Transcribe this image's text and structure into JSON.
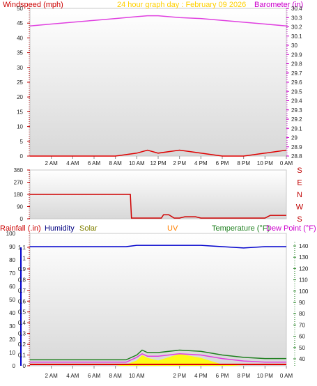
{
  "title": "24 hour graph day : February 09 2026",
  "top_panel": {
    "left_label": "Windspeed (mph)",
    "right_label": "Barometer (in)",
    "left_ticks": [
      "0",
      "5",
      "10",
      "15",
      "20",
      "25",
      "30",
      "35",
      "40",
      "45",
      "50"
    ],
    "right_ticks": [
      "28.8",
      "28.9",
      "29",
      "29.1",
      "29.2",
      "29.3",
      "29.4",
      "29.5",
      "29.6",
      "29.7",
      "29.8",
      "29.9",
      "30",
      "30.1",
      "30.2",
      "30.3",
      "30.4"
    ],
    "x_ticks": [
      "2 AM",
      "4 AM",
      "6 AM",
      "8 AM",
      "10 AM",
      "12 PM",
      "2 PM",
      "4 PM",
      "6 PM",
      "8 PM",
      "10 PM",
      "0 AM"
    ]
  },
  "middle_panel": {
    "left_ticks": [
      "0",
      "90",
      "180",
      "270",
      "360"
    ],
    "right_labels": [
      "S",
      "E",
      "N",
      "W",
      "S"
    ]
  },
  "bottom_panel": {
    "labels": {
      "rainfall": "Rainfall (.in)",
      "humidity": "Humidity",
      "solar": "Solar",
      "uv": "UV",
      "temperature": "Temperature (°F)",
      "dewpoint": "Dew Point (°F)"
    },
    "left_ticks_pct": [
      "0",
      "10",
      "20",
      "30",
      "40",
      "50",
      "60",
      "70",
      "80",
      "90",
      "100"
    ],
    "left_ticks_rain": [
      "0",
      "0.1",
      "0.2",
      "0.3",
      "0.4",
      "0.5",
      "0.6",
      "0.7",
      "0.8",
      "0.9",
      "1",
      "1.1"
    ],
    "right_ticks": [
      "40",
      "50",
      "60",
      "70",
      "80",
      "90",
      "100",
      "110",
      "120",
      "130",
      "140"
    ],
    "x_ticks": [
      "2 AM",
      "4 AM",
      "6 AM",
      "8 AM",
      "10 AM",
      "2 PM",
      "4 PM",
      "6 PM",
      "8 PM",
      "10 PM",
      "0 AM"
    ]
  },
  "colors": {
    "wind": "#e00000",
    "gust": "#e00000",
    "barometer": "#e040e0",
    "direction": "#d00000",
    "humidity": "#0000cc",
    "temperature": "#208020",
    "dewpoint": "#e040e0",
    "solar": "#ffff00",
    "uv": "#ff8000",
    "rain": "#e00000",
    "title": "#ffd000",
    "solar_label": "#808000"
  },
  "chart_data": [
    {
      "type": "line",
      "title": "24 hour graph day : February 09 2026",
      "xlabel": "",
      "x_hours": [
        0,
        2,
        4,
        6,
        8,
        10,
        11,
        12,
        14,
        16,
        18,
        20,
        22,
        24
      ],
      "series": [
        {
          "name": "Barometer (in)",
          "axis": "right",
          "values": [
            30.21,
            30.23,
            30.25,
            30.27,
            30.29,
            30.31,
            30.32,
            30.32,
            30.3,
            30.29,
            30.27,
            30.25,
            30.23,
            30.21
          ]
        },
        {
          "name": "Windspeed (mph)",
          "axis": "left",
          "values": [
            0,
            0,
            0,
            0,
            0,
            1,
            2,
            1,
            2,
            1,
            0,
            0,
            1,
            2
          ]
        }
      ],
      "ylim_left": [
        0,
        50
      ],
      "ylim_right": [
        28.8,
        30.4
      ]
    },
    {
      "type": "line",
      "x_hours": [
        0,
        9.4,
        9.5,
        12.3,
        12.5,
        13.0,
        13.5,
        14.0,
        14.5,
        15.5,
        16.0,
        20.0,
        22.0,
        22.5,
        24
      ],
      "values": [
        180,
        180,
        5,
        5,
        30,
        30,
        5,
        5,
        15,
        15,
        5,
        5,
        5,
        25,
        25
      ],
      "ylim": [
        0,
        360
      ]
    },
    {
      "type": "line",
      "x_hours": [
        0,
        2,
        4,
        6,
        8,
        9,
        10,
        10.5,
        11,
        12,
        14,
        16,
        18,
        20,
        22,
        24
      ],
      "series": [
        {
          "name": "Humidity",
          "axis": "left",
          "values": [
            90,
            90,
            90,
            90,
            90,
            90,
            91,
            91,
            91,
            91,
            91,
            91,
            90,
            89,
            90,
            90
          ]
        },
        {
          "name": "Temperature (°F)",
          "axis": "right",
          "values": [
            40,
            40,
            40,
            40,
            40,
            40,
            44,
            48,
            46,
            46,
            48,
            47,
            44,
            42,
            41,
            41
          ]
        },
        {
          "name": "Dew Point (°F)",
          "axis": "right",
          "values": [
            38,
            38,
            38,
            38,
            38,
            38,
            42,
            45,
            43,
            43,
            45,
            44,
            41,
            39,
            38,
            38
          ]
        },
        {
          "name": "Solar",
          "axis": "left",
          "values": [
            0,
            0,
            0,
            0,
            0,
            1,
            4,
            8,
            6,
            4,
            9,
            6,
            1,
            0,
            0,
            0
          ]
        }
      ],
      "ylim_left": [
        0,
        100
      ],
      "ylim_right": [
        35,
        145
      ]
    }
  ]
}
